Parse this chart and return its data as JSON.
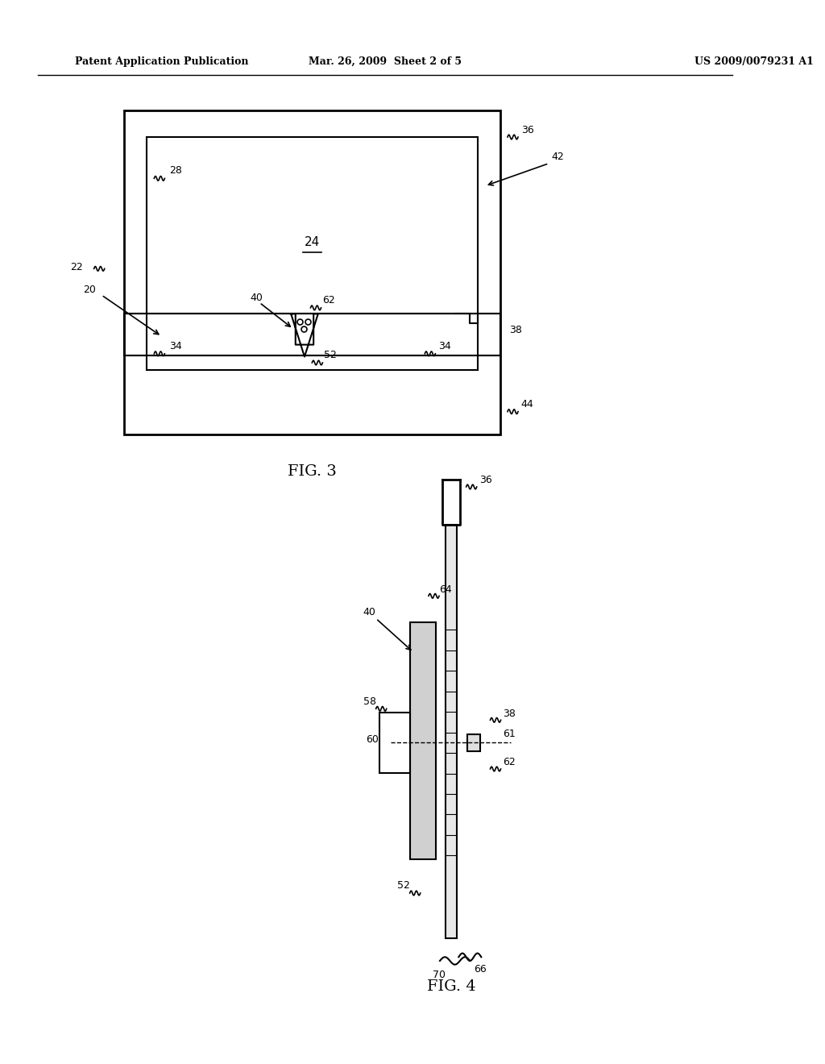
{
  "bg_color": "#ffffff",
  "header_left": "Patent Application Publication",
  "header_mid": "Mar. 26, 2009  Sheet 2 of 5",
  "header_right": "US 2009/0079231 A1",
  "fig3_label": "FIG. 3",
  "fig4_label": "FIG. 4",
  "line_color": "#000000",
  "text_color": "#000000"
}
